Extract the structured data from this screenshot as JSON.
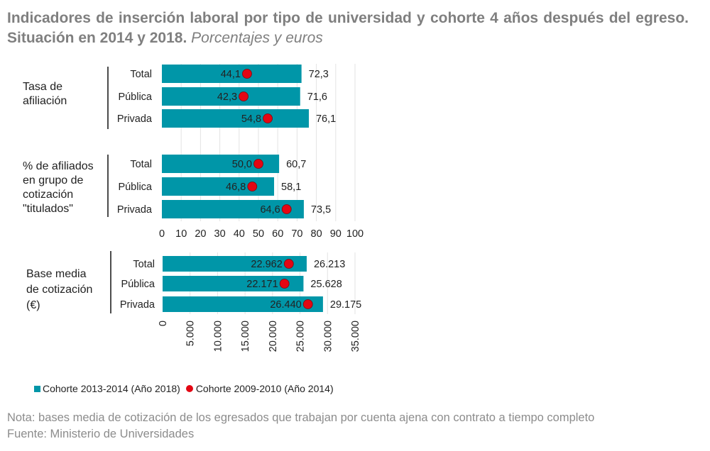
{
  "title": {
    "main": "Indicadores de inserción laboral por tipo de universidad y cohorte 4 años después del egreso. Situación en 2014 y 2018.",
    "sub": "Porcentajes y euros"
  },
  "colors": {
    "bar": "#0096a8",
    "dot": "#e30613",
    "grid": "#e3e3e3",
    "text": "#222222"
  },
  "legend": {
    "bar_label": "Cohorte 2013-2014 (Año 2018)",
    "dot_label": "Cohorte 2009-2010 (Año 2014)"
  },
  "note": "Nota: bases media de cotización de los egresados que trabajan por cuenta ajena con contrato a tiempo completo",
  "source": "Fuente: Ministerio de Universidades",
  "chart_data": [
    {
      "type": "bar",
      "orientation": "horizontal",
      "xlim": [
        0,
        100
      ],
      "ticks": [
        "0",
        "10",
        "20",
        "30",
        "40",
        "50",
        "60",
        "70",
        "80",
        "90",
        "100"
      ],
      "tick_values": [
        0,
        10,
        20,
        30,
        40,
        50,
        60,
        70,
        80,
        90,
        100
      ],
      "grid": true,
      "groups": [
        {
          "label": "Tasa de afiliación",
          "categories": [
            "Total",
            "Pública",
            "Privada"
          ],
          "bar_values": [
            72.3,
            71.6,
            76.1
          ],
          "bar_labels": [
            "72,3",
            "71,6",
            "76,1"
          ],
          "dot_values": [
            44.1,
            42.3,
            54.8
          ],
          "dot_labels": [
            "44,1",
            "42,3",
            "54,8"
          ]
        },
        {
          "label": "% de afiliados en grupo de cotización \"titulados\"",
          "categories": [
            "Total",
            "Pública",
            "Privada"
          ],
          "bar_values": [
            60.7,
            58.1,
            73.5
          ],
          "bar_labels": [
            "60,7",
            "58,1",
            "73,5"
          ],
          "dot_values": [
            50.0,
            46.8,
            64.6
          ],
          "dot_labels": [
            "50,0",
            "46,8",
            "64,6"
          ]
        }
      ]
    },
    {
      "type": "bar",
      "orientation": "horizontal",
      "xlim": [
        0,
        35000
      ],
      "ticks": [
        "0",
        "5.000",
        "10.000",
        "15.000",
        "20.000",
        "25.000",
        "30.000",
        "35.000"
      ],
      "tick_values": [
        0,
        5000,
        10000,
        15000,
        20000,
        25000,
        30000,
        35000
      ],
      "grid": true,
      "groups": [
        {
          "label": "Base media de cotización (€)",
          "categories": [
            "Total",
            "Pública",
            "Privada"
          ],
          "bar_values": [
            26213,
            25628,
            29175
          ],
          "bar_labels": [
            "26.213",
            "25.628",
            "29.175"
          ],
          "dot_values": [
            22962,
            22171,
            26440
          ],
          "dot_labels": [
            "22.962",
            "22.171",
            "26.440"
          ]
        }
      ]
    }
  ]
}
